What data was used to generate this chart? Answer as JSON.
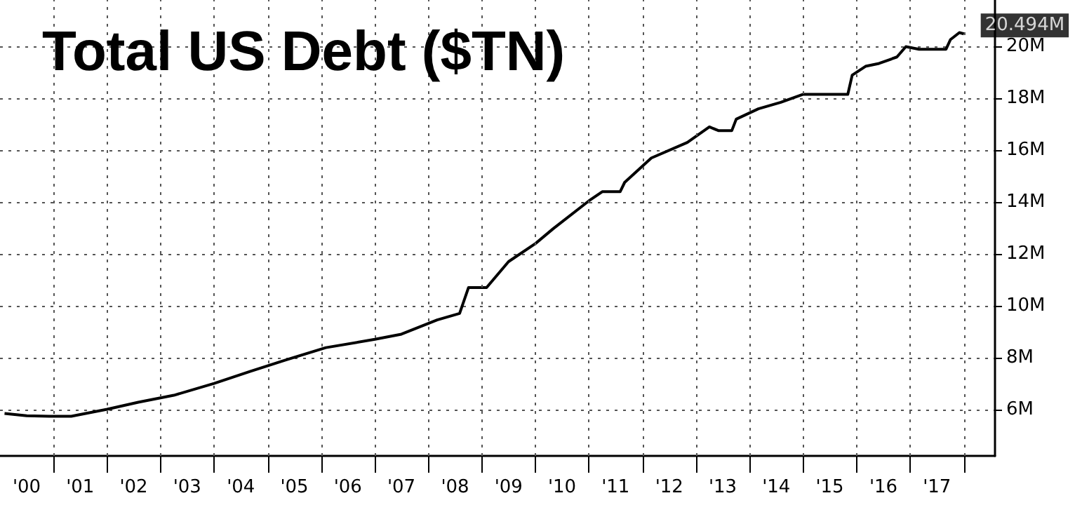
{
  "chart_data": {
    "type": "line",
    "title": "Total US Debt ($TN)",
    "x": [
      "2000-02",
      "2000-07",
      "2000-12",
      "2001-05",
      "2002-01",
      "2002-08",
      "2003-04",
      "2004-01",
      "2004-09",
      "2005-05",
      "2006-02",
      "2007-01",
      "2007-07",
      "2008-03",
      "2008-08",
      "2008-10",
      "2009-02",
      "2009-07",
      "2010-01",
      "2010-05",
      "2011-01",
      "2011-04",
      "2011-08",
      "2011-09",
      "2012-03",
      "2012-11",
      "2013-04",
      "2013-06",
      "2013-09",
      "2013-10",
      "2014-03",
      "2014-08",
      "2015-01",
      "2015-11",
      "2015-12",
      "2016-03",
      "2016-06",
      "2016-10",
      "2016-12",
      "2017-03",
      "2017-09",
      "2017-10",
      "2017-12",
      "2018-01"
    ],
    "series": [
      {
        "color": "#000000",
        "values": [
          5.84,
          5.75,
          5.73,
          5.73,
          6.0,
          6.27,
          6.54,
          7.0,
          7.46,
          7.9,
          8.38,
          8.7,
          8.9,
          9.45,
          9.7,
          10.7,
          10.7,
          11.7,
          12.4,
          12.97,
          14.05,
          14.4,
          14.4,
          14.76,
          15.7,
          16.3,
          16.9,
          16.76,
          16.76,
          17.2,
          17.6,
          17.85,
          18.16,
          18.16,
          18.9,
          19.24,
          19.35,
          19.6,
          20.0,
          19.9,
          19.9,
          20.27,
          20.54,
          20.494
        ]
      }
    ],
    "annotations": [
      {
        "text": "20.494M",
        "x": "2018-01",
        "y": 20.494
      }
    ],
    "xlim": [
      "2000-01-01",
      "2018-08"
    ],
    "xticks": [
      {
        "value": "2000-07-01",
        "label": "'00"
      },
      {
        "value": "2001-07-01",
        "label": "'01"
      },
      {
        "value": "2002-07-01",
        "label": "'02"
      },
      {
        "value": "2003-07-01",
        "label": "'03"
      },
      {
        "value": "2004-07-01",
        "label": "'04"
      },
      {
        "value": "2005-07-01",
        "label": "'05"
      },
      {
        "value": "2006-07-01",
        "label": "'06"
      },
      {
        "value": "2007-07-01",
        "label": "'07"
      },
      {
        "value": "2008-07-01",
        "label": "'08"
      },
      {
        "value": "2009-07-01",
        "label": "'09"
      },
      {
        "value": "2010-07-01",
        "label": "'10"
      },
      {
        "value": "2011-07-01",
        "label": "'11"
      },
      {
        "value": "2012-07-01",
        "label": "'12"
      },
      {
        "value": "2013-07-01",
        "label": "'13"
      },
      {
        "value": "2014-07-01",
        "label": "'14"
      },
      {
        "value": "2015-07-01",
        "label": "'15"
      },
      {
        "value": "2016-07-01",
        "label": "'16"
      },
      {
        "value": "2017-07-01",
        "label": "'17"
      },
      {
        "value": "2001-01-01",
        "label": null
      },
      {
        "value": "2002-01-01",
        "label": null
      },
      {
        "value": "2003-01-01",
        "label": null
      },
      {
        "value": "2004-01-01",
        "label": null
      },
      {
        "value": "2005-01-01",
        "label": null
      },
      {
        "value": "2006-01-01",
        "label": null
      },
      {
        "value": "2007-01-01",
        "label": null
      },
      {
        "value": "2008-01-01",
        "label": null
      },
      {
        "value": "2009-01-01",
        "label": null
      },
      {
        "value": "2010-01-01",
        "label": null
      },
      {
        "value": "2011-01-01",
        "label": null
      },
      {
        "value": "2012-01-01",
        "label": null
      },
      {
        "value": "2013-01-01",
        "label": null
      },
      {
        "value": "2014-01-01",
        "label": null
      },
      {
        "value": "2015-01-01",
        "label": null
      },
      {
        "value": "2016-01-01",
        "label": null
      },
      {
        "value": "2017-01-01",
        "label": null
      },
      {
        "value": "2018-01-01",
        "label": null
      }
    ],
    "ylim": [
      4.2,
      21.8
    ],
    "yticks": [
      {
        "value": 6,
        "label": "6M"
      },
      {
        "value": 8,
        "label": "8M"
      },
      {
        "value": 10,
        "label": "10M"
      },
      {
        "value": 12,
        "label": "12M"
      },
      {
        "value": 14,
        "label": "14M"
      },
      {
        "value": 16,
        "label": "16M"
      },
      {
        "value": 18,
        "label": "18M"
      },
      {
        "value": 20,
        "label": "20M"
      }
    ],
    "grid": true,
    "marker": "none",
    "line_style": "solid"
  }
}
